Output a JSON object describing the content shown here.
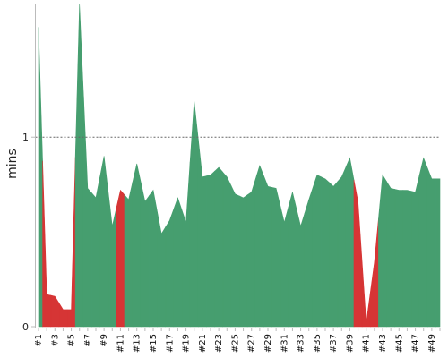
{
  "chart_data": {
    "type": "area",
    "title": "",
    "xlabel": "",
    "ylabel": "mins",
    "ylim": [
      0,
      1.7
    ],
    "yticks": [
      0,
      1
    ],
    "grid": "dotted line at y=1",
    "colors": {
      "positive": "#469e6f",
      "negative": "#d63535"
    },
    "x": [
      1,
      2,
      3,
      4,
      5,
      6,
      7,
      8,
      9,
      10,
      11,
      12,
      13,
      14,
      15,
      16,
      17,
      18,
      19,
      20,
      21,
      22,
      23,
      24,
      25,
      26,
      27,
      28,
      29,
      30,
      31,
      32,
      33,
      34,
      35,
      36,
      37,
      38,
      39,
      40,
      41,
      42,
      43,
      44,
      45,
      46,
      47,
      48,
      49,
      50
    ],
    "xtick_labels": [
      "#1",
      "#3",
      "#5",
      "#7",
      "#9",
      "#11",
      "#13",
      "#15",
      "#17",
      "#19",
      "#21",
      "#23",
      "#25",
      "#27",
      "#29",
      "#31",
      "#33",
      "#35",
      "#37",
      "#39",
      "#41",
      "#43",
      "#45",
      "#47",
      "#49"
    ],
    "series": [
      {
        "values": [
          1.58,
          0.17,
          0.16,
          0.09,
          0.09,
          1.7,
          0.73,
          0.68,
          0.9,
          0.53,
          0.72,
          0.67,
          0.86,
          0.66,
          0.72,
          0.49,
          0.56,
          0.68,
          0.55,
          1.19,
          0.79,
          0.8,
          0.84,
          0.79,
          0.7,
          0.68,
          0.71,
          0.85,
          0.74,
          0.73,
          0.55,
          0.71,
          0.53,
          0.67,
          0.8,
          0.78,
          0.74,
          0.79,
          0.89,
          0.66,
          0.02,
          0.34,
          0.8,
          0.73,
          0.72,
          0.72,
          0.71,
          0.89,
          0.78,
          0.78
        ],
        "status": [
          "ok",
          "bad",
          "bad",
          "bad",
          "bad",
          "ok",
          "ok",
          "ok",
          "ok",
          "ok",
          "bad",
          "ok",
          "ok",
          "ok",
          "ok",
          "ok",
          "ok",
          "ok",
          "ok",
          "ok",
          "ok",
          "ok",
          "ok",
          "ok",
          "ok",
          "ok",
          "ok",
          "ok",
          "ok",
          "ok",
          "ok",
          "ok",
          "ok",
          "ok",
          "ok",
          "ok",
          "ok",
          "ok",
          "ok",
          "bad",
          "bad",
          "bad",
          "ok",
          "ok",
          "ok",
          "ok",
          "ok",
          "ok",
          "ok",
          "ok"
        ]
      }
    ]
  }
}
